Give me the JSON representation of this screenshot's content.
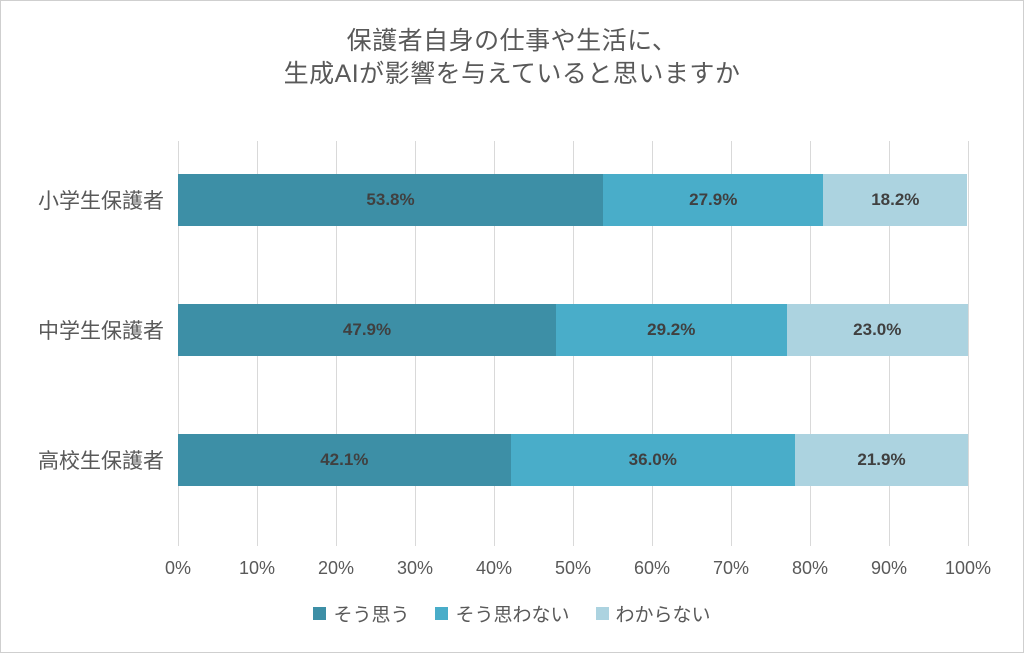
{
  "chart_data": {
    "type": "bar",
    "stacked": true,
    "orientation": "horizontal",
    "title": "保護者自身の仕事や生活に、生成AIが影響を与えていると思いますか",
    "title_lines": [
      "保護者自身の仕事や生活に、",
      "生成AIが影響を与えていると思いますか"
    ],
    "categories": [
      "小学生保護者",
      "中学生保護者",
      "高校生保護者"
    ],
    "series": [
      {
        "name": "そう思う",
        "color": "#3D8FA6",
        "values": [
          53.8,
          47.9,
          42.1
        ],
        "labels": [
          "53.8%",
          "47.9%",
          "42.1%"
        ]
      },
      {
        "name": "そう思わない",
        "color": "#49ADC9",
        "values": [
          27.9,
          29.2,
          36.0
        ],
        "labels": [
          "27.9%",
          "29.2%",
          "36.0%"
        ]
      },
      {
        "name": "わからない",
        "color": "#ACD3E0",
        "values": [
          18.2,
          23.0,
          21.9
        ],
        "labels": [
          "18.2%",
          "23.0%",
          "21.9%"
        ]
      }
    ],
    "xlabel": "",
    "ylabel": "",
    "xlim": [
      0,
      100
    ],
    "x_ticks": [
      "0%",
      "10%",
      "20%",
      "30%",
      "40%",
      "50%",
      "60%",
      "70%",
      "80%",
      "90%",
      "100%"
    ],
    "grid": true,
    "legend_position": "bottom",
    "colors": {
      "grid": "#D9D9D9",
      "title_text": "#595959",
      "axis_text": "#595959",
      "data_label_text": "#404040",
      "background": "#FFFFFF"
    }
  }
}
